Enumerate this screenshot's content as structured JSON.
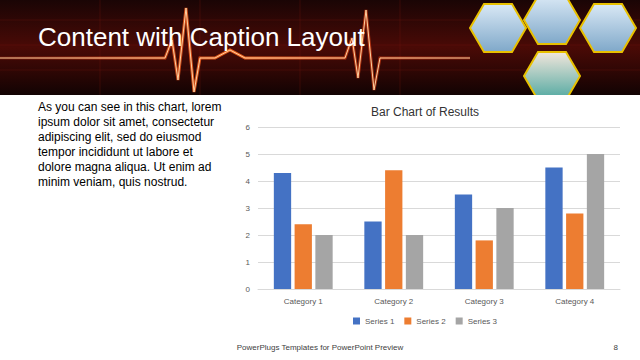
{
  "slide": {
    "title": "Content with Caption Layout",
    "caption": "As you can see in this chart, lorem ipsum dolor sit amet, consectetur adipiscing elit, sed do eiusmod tempor incididunt ut labore et dolore magna aliqua. Ut enim ad minim veniam, quis nostrud.",
    "footer": "PowerPlugs Templates for PowerPoint Preview",
    "page_number": "8"
  },
  "chart_data": {
    "type": "bar",
    "title": "Bar Chart of Results",
    "categories": [
      "Category 1",
      "Category 2",
      "Category 3",
      "Category 4"
    ],
    "series": [
      {
        "name": "Series 1",
        "color": "#4472c4",
        "values": [
          4.3,
          2.5,
          3.5,
          4.5
        ]
      },
      {
        "name": "Series 2",
        "color": "#ed7d31",
        "values": [
          2.4,
          4.4,
          1.8,
          2.8
        ]
      },
      {
        "name": "Series 3",
        "color": "#a5a5a5",
        "values": [
          2,
          2,
          3,
          5
        ]
      }
    ],
    "ylim": [
      0,
      6
    ],
    "yticks": [
      0,
      1,
      2,
      3,
      4,
      5,
      6
    ],
    "grid": true,
    "legend": "bottom"
  }
}
